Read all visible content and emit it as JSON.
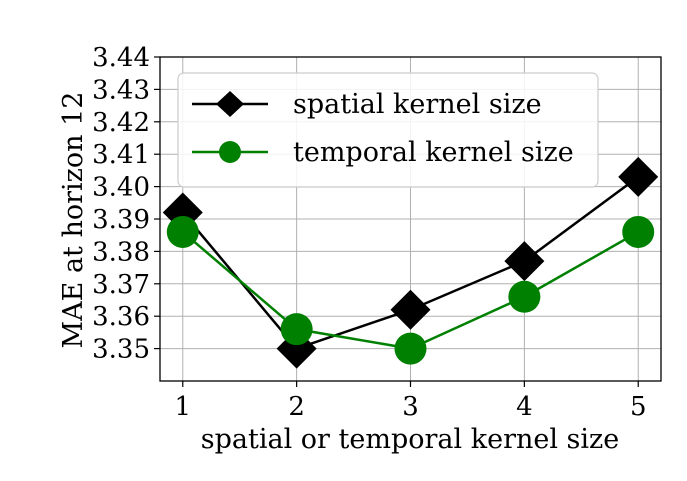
{
  "chart_data": {
    "type": "line",
    "title": "",
    "xlabel": "spatial or temporal kernel size",
    "ylabel": "MAE at horizon 12",
    "x": [
      1,
      2,
      3,
      4,
      5
    ],
    "xlim": [
      0.8,
      5.2
    ],
    "ylim": [
      3.34,
      3.44
    ],
    "xticks": [
      "1",
      "2",
      "3",
      "4",
      "5"
    ],
    "yticks": [
      "3.35",
      "3.36",
      "3.37",
      "3.38",
      "3.39",
      "3.40",
      "3.41",
      "3.42",
      "3.43",
      "3.44"
    ],
    "grid": true,
    "legend_position": "top-right",
    "series": [
      {
        "name": "spatial kernel size",
        "values": [
          3.392,
          3.35,
          3.362,
          3.377,
          3.403
        ],
        "color": "#000000",
        "marker": "diamond"
      },
      {
        "name": "temporal kernel size",
        "values": [
          3.386,
          3.356,
          3.35,
          3.366,
          3.386
        ],
        "color": "#008000",
        "marker": "circle"
      }
    ]
  }
}
